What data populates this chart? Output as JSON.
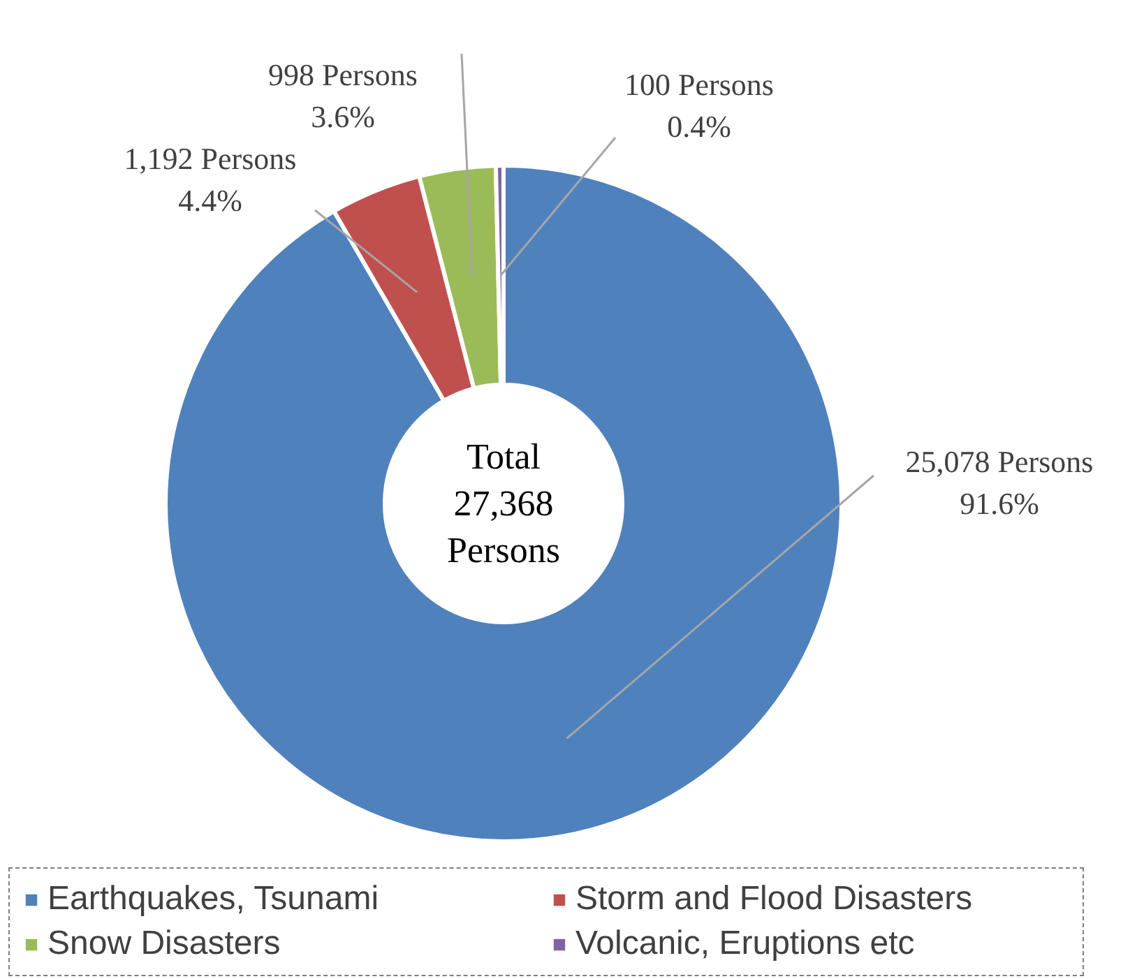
{
  "chart_data": {
    "type": "donut",
    "categories": [
      "Earthquakes, Tsunami",
      "Storm and Flood Disasters",
      "Snow Disasters",
      "Volcanic, Eruptions etc"
    ],
    "values": [
      25078,
      1192,
      998,
      100
    ],
    "colors": [
      "#4f81bd",
      "#c0504d",
      "#9bbb59",
      "#8064a2"
    ],
    "value_labels": [
      "25,078 Persons\n91.6%",
      "1,192 Persons\n4.4%",
      "998 Persons\n3.6%",
      "100 Persons\n0.4%"
    ],
    "annotations": [
      "Total\n27,368\nPersons"
    ],
    "legend": "bottom"
  }
}
